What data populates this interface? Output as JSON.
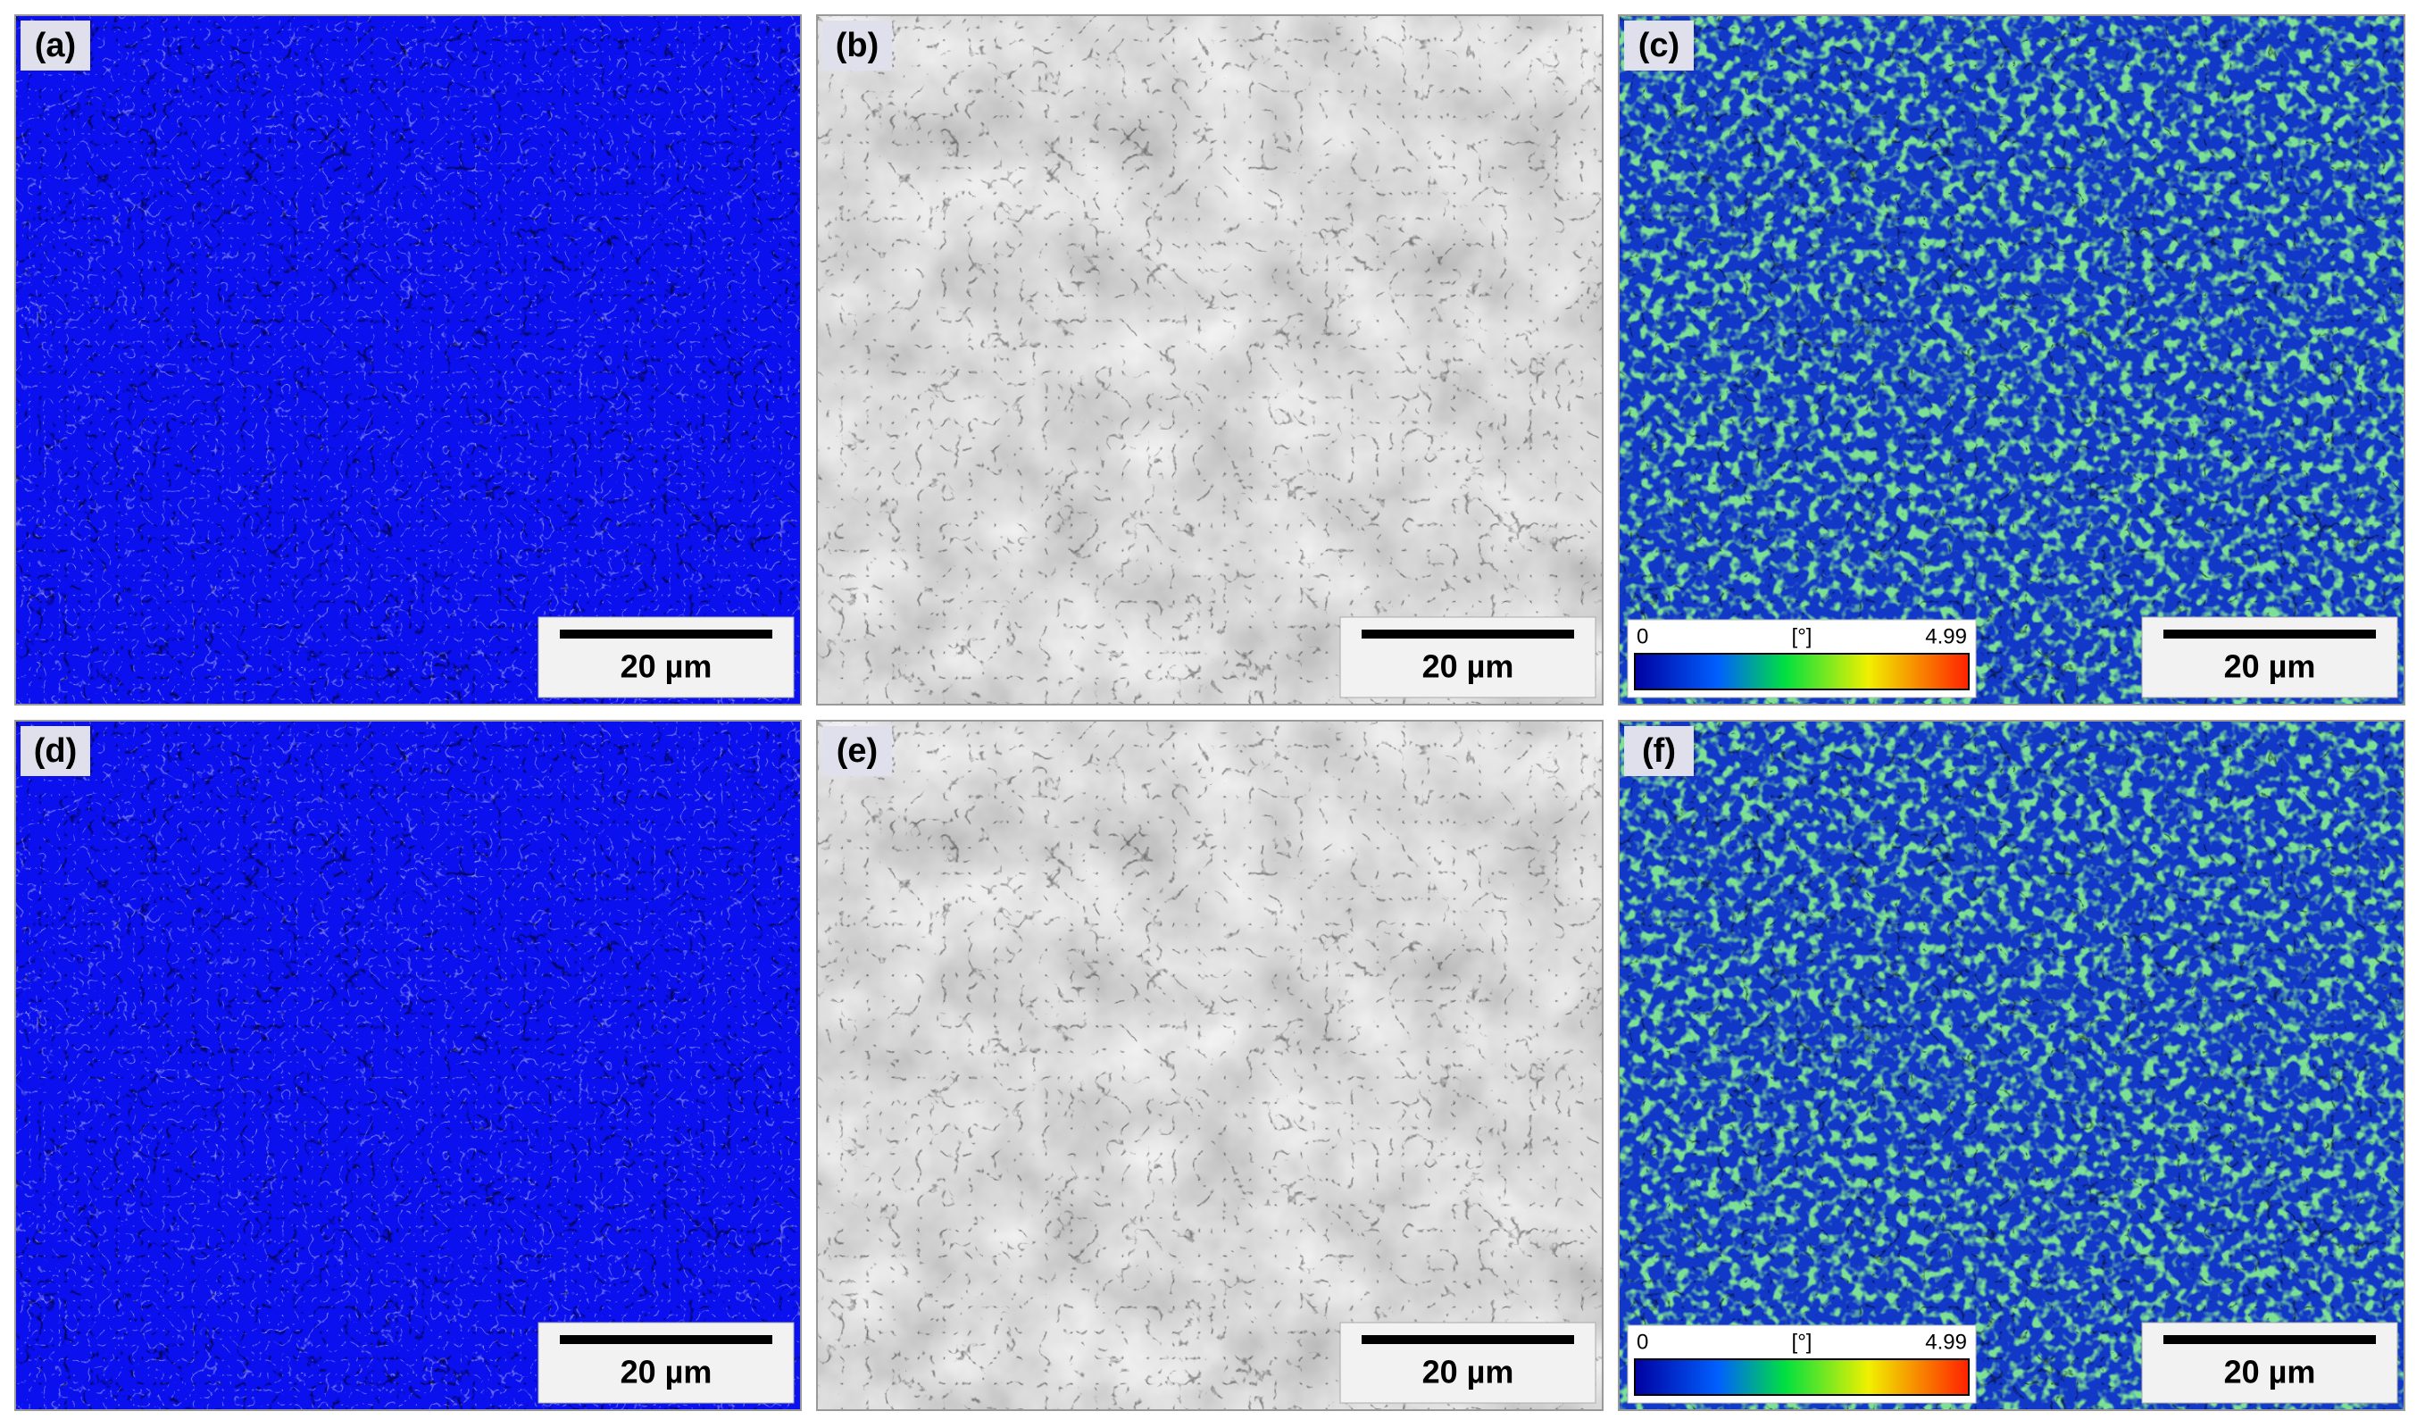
{
  "panels": [
    {
      "label": "(a)",
      "scale_bar": "20 µm"
    },
    {
      "label": "(b)",
      "scale_bar": "20 µm"
    },
    {
      "label": "(c)",
      "scale_bar": "20 µm",
      "colorbar": {
        "min": "0",
        "unit": "[°]",
        "max": "4.99"
      }
    },
    {
      "label": "(d)",
      "scale_bar": "20 µm"
    },
    {
      "label": "(e)",
      "scale_bar": "20 µm"
    },
    {
      "label": "(f)",
      "scale_bar": "20 µm",
      "colorbar": {
        "min": "0",
        "unit": "[°]",
        "max": "4.99"
      }
    }
  ]
}
